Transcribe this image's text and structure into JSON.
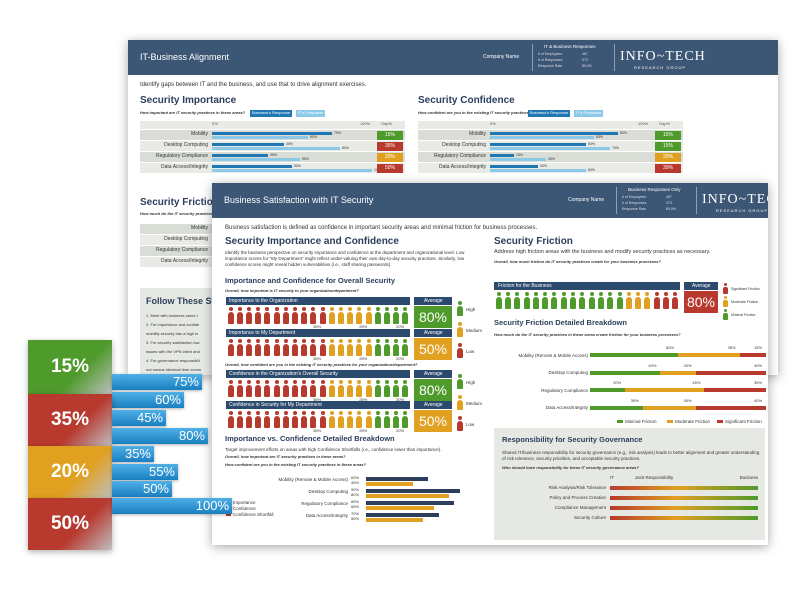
{
  "back": {
    "title": "IT-Business Alignment",
    "company": "Company Name",
    "responses_title": "IT & Business Responses",
    "stats": [
      [
        "# of Employees",
        "467"
      ],
      [
        "# of Responses",
        "373"
      ],
      [
        "Response Rate",
        "80.0%"
      ]
    ],
    "logo": "INFO~TECH",
    "logo_sub": "RESEARCH GROUP",
    "intro": "Identify gaps between IT and the business, and use that to drive alignment exercises.",
    "importance": {
      "heading": "Security Importance",
      "question": "How important are IT security practices in these areas?",
      "legend": [
        "Business's Response",
        "IT's Response"
      ],
      "colors": [
        "#1f78b4",
        "#8cc8e8"
      ],
      "scale": [
        "0%",
        "100%",
        "Gap%"
      ],
      "rows": [
        {
          "label": "Mobility",
          "values": [
            75,
            60
          ],
          "value_labels": [
            "75%",
            "60%"
          ],
          "gap": "15%",
          "gap_color": "#4e9a2a"
        },
        {
          "label": "Desktop Computing",
          "values": [
            45,
            80
          ],
          "value_labels": [
            "45%",
            "80%"
          ],
          "gap": "35%",
          "gap_color": "#b8392e"
        },
        {
          "label": "Regulatory Compliance",
          "values": [
            35,
            55
          ],
          "value_labels": [
            "35%",
            "55%"
          ],
          "gap": "20%",
          "gap_color": "#e0a020"
        },
        {
          "label": "Data Access/Integrity",
          "values": [
            50,
            100
          ],
          "value_labels": [
            "50%",
            "100%"
          ],
          "gap": "50%",
          "gap_color": "#b8392e"
        }
      ]
    },
    "confidence": {
      "heading": "Security Confidence",
      "question": "How confident are you in the existing IT security practices in these areas?",
      "legend": [
        "Business's Response",
        "IT's Response"
      ],
      "colors": [
        "#1f78b4",
        "#8cc8e8"
      ],
      "scale": [
        "0%",
        "100%",
        "Gap%"
      ],
      "rows": [
        {
          "label": "Mobility",
          "values": [
            80,
            65
          ],
          "value_labels": [
            "80%",
            "65%"
          ],
          "gap": "15%",
          "gap_color": "#4e9a2a"
        },
        {
          "label": "Desktop Computing",
          "values": [
            60,
            75
          ],
          "value_labels": [
            "60%",
            "75%"
          ],
          "gap": "15%",
          "gap_color": "#4e9a2a"
        },
        {
          "label": "Regulatory Compliance",
          "values": [
            15,
            35
          ],
          "value_labels": [
            "15%",
            "35%"
          ],
          "gap": "20%",
          "gap_color": "#e0a020"
        },
        {
          "label": "Data Access/Integrity",
          "values": [
            30,
            60
          ],
          "value_labels": [
            "30%",
            "60%"
          ],
          "gap": "30%",
          "gap_color": "#b8392e"
        }
      ]
    },
    "friction": {
      "heading": "Security Friction",
      "question": "How much do the IT security practices in these areas create friction for your business?",
      "rows": [
        "Mobility",
        "Desktop Computing",
        "Regulatory Compliance",
        "Data Access/Integrity"
      ]
    },
    "follow": {
      "heading": "Follow These Steps",
      "items": [
        "1. Meet with business users t",
        "2. For importance and confide",
        "mobility security has a high in",
        "3. For security satisfaction low",
        "issues with the VPN client and",
        "4. For governance responsibili",
        "not means identical time comm"
      ]
    }
  },
  "front": {
    "title": "Business Satisfaction with IT Security",
    "company": "Company Name",
    "responses_title": "Business Responses Only",
    "stats": [
      [
        "# of Employees",
        "467"
      ],
      [
        "# of Responses",
        "373"
      ],
      [
        "Response Rate",
        "80.0%"
      ]
    ],
    "logo": "INFO~TECH",
    "logo_sub": "RESEARCH GROUP",
    "intro": "Business satisfaction is defined as confidence in important security areas and minimal friction for business processes.",
    "left": {
      "heading": "Security Importance and Confidence",
      "paragraph": "Identify the business perspective on security importance and confidence at the department and organizational level. Low importance scores for \"My Department\" might reflect under-valuing their own day-to-day security practices. Similarly, low confidence scores might reveal hidden vulnerabilities (i.e., staff sharing passwords).",
      "subheading": "Importance and Confidence for Overall Security",
      "question1": "Overall, how important is IT security to your organization/department?",
      "question2": "Overall, how confident are you in the existing IT security practices for your organization/department?",
      "average_label": "Average",
      "levels": [
        "High",
        "Medium",
        "Low"
      ],
      "level_colors": [
        "#4e9a2a",
        "#e0a020",
        "#b8392e"
      ],
      "rows": [
        {
          "label": "Importance to the Organization",
          "segments": [
            55,
            25,
            20
          ],
          "segment_labels": [
            "55%",
            "25%",
            "20%"
          ],
          "average": "80%",
          "average_color": "#4e9a2a"
        },
        {
          "label": "Importance to My Department",
          "segments": [
            55,
            25,
            20
          ],
          "segment_labels": [
            "55%",
            "25%",
            "20%"
          ],
          "average": "50%",
          "average_color": "#e0a020"
        },
        {
          "label": "Confidence in the Organization's Overall Security",
          "segments": [
            55,
            25,
            20
          ],
          "segment_labels": [
            "55%",
            "25%",
            "20%"
          ],
          "average": "80%",
          "average_color": "#4e9a2a"
        },
        {
          "label": "Confidence in Security for My Department",
          "segments": [
            55,
            25,
            20
          ],
          "segment_labels": [
            "55%",
            "25%",
            "20%"
          ],
          "average": "50%",
          "average_color": "#e0a020"
        }
      ],
      "segment_colors": [
        "#b8392e",
        "#e0a020",
        "#4e9a2a"
      ]
    },
    "breakdown": {
      "heading": "Importance vs. Confidence Detailed Breakdown",
      "text": "Target improvement efforts on areas with high Confidence Shortfalls (i.e., confidence lower than importance).",
      "question1": "Overall, how important are IT security practices in these areas?",
      "question2": "How confident are you in the existing IT security practices in these areas?",
      "legend": [
        "Importance",
        "Confidence",
        "Confidence Shortfall"
      ],
      "colors": [
        "#2c3e5c",
        "#e0a020",
        "#b8392e"
      ],
      "rows": [
        {
          "label": "Mobility (Remote & Mobile Access)",
          "values": [
            60,
            45
          ],
          "value_labels": [
            "60%",
            "45%"
          ]
        },
        {
          "label": "Desktop Computing",
          "values": [
            90,
            80
          ],
          "value_labels": [
            "90%",
            "80%"
          ]
        },
        {
          "label": "Regulatory Compliance",
          "values": [
            85,
            65
          ],
          "value_labels": [
            "85%",
            "65%"
          ]
        },
        {
          "label": "Data Access/Integrity",
          "values": [
            70,
            55
          ],
          "value_labels": [
            "70%",
            "55%"
          ]
        }
      ]
    },
    "friction": {
      "heading": "Security Friction",
      "text": "Address high friction areas with the business and modify security practices as necessary.",
      "question": "Overall, how much friction do IT security practices create for your business processes?",
      "row_label": "Friction for the Business",
      "average_label": "Average",
      "segments": [
        70,
        15,
        15
      ],
      "segment_colors": [
        "#4e9a2a",
        "#e0a020",
        "#b8392e"
      ],
      "average": "80%",
      "average_color": "#b8392e",
      "legend": [
        "Significant Friction",
        "Moderate Friction",
        "Minimal Friction"
      ],
      "legend_colors": [
        "#b8392e",
        "#e0a020",
        "#4e9a2a"
      ]
    },
    "friction_detail": {
      "heading": "Security Friction Detailed Breakdown",
      "question": "How much do the IT security practices in these areas create friction for your business processes?",
      "legend": [
        "Minimal Friction",
        "Moderate Friction",
        "Significant Friction"
      ],
      "colors": [
        "#4e9a2a",
        "#e0a020",
        "#b8392e"
      ],
      "rows": [
        {
          "label": "Mobility (Remote & Mobile Access)",
          "values": [
            50,
            35,
            15
          ],
          "value_labels": [
            "50%",
            "35%",
            "15%"
          ]
        },
        {
          "label": "Desktop Computing",
          "values": [
            40,
            20,
            40
          ],
          "value_labels": [
            "40%",
            "20%",
            "40%"
          ]
        },
        {
          "label": "Regulatory Compliance",
          "values": [
            20,
            45,
            35
          ],
          "value_labels": [
            "20%",
            "45%",
            "35%"
          ]
        },
        {
          "label": "Data Access/Integrity",
          "values": [
            30,
            30,
            40
          ],
          "value_labels": [
            "30%",
            "30%",
            "40%"
          ]
        }
      ]
    },
    "governance": {
      "heading": "Responsibility for Security Governance",
      "paragraph": "Shared IT/business responsibility for security governance (e.g., risk analysis) leads to better alignment and greater understanding of risk tolerance, security priorities, and acceptable security practices.",
      "question": "Who should have responsibility for these IT security governance areas?",
      "scale": [
        "IT",
        "Joint Responsibility",
        "Business"
      ],
      "rows": [
        "Risk Analysis/Risk Tolerance",
        "Policy and Process Creation",
        "Compliance Management",
        "Security Culture"
      ]
    }
  },
  "ribbon": {
    "groups": [
      {
        "gap": "15%",
        "color": "#4e9a2a",
        "values": [
          75,
          60
        ],
        "value_labels": [
          "75%",
          "60%"
        ]
      },
      {
        "gap": "35%",
        "color": "#b8392e",
        "values": [
          45,
          80
        ],
        "value_labels": [
          "45%",
          "80%"
        ]
      },
      {
        "gap": "20%",
        "color": "#e0a020",
        "values": [
          35,
          55
        ],
        "value_labels": [
          "35%",
          "55%"
        ]
      },
      {
        "gap": "50%",
        "color": "#b8392e",
        "values": [
          50,
          100
        ],
        "value_labels": [
          "50%",
          "100%"
        ]
      }
    ]
  }
}
